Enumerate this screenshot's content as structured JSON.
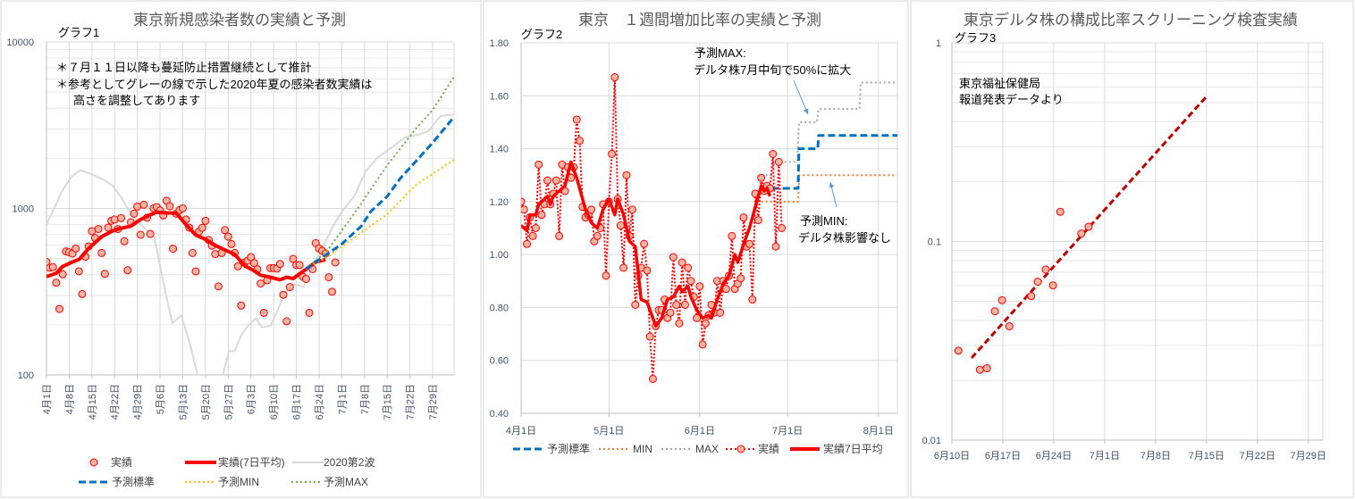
{
  "chart_data": [
    {
      "type": "line",
      "title": "東京新規感染者数の実績と予測",
      "label": "グラフ1",
      "notes": [
        "＊７月１１日以降も蔓延防止措置継続として推計",
        "＊参考としてグレーの線で示した2020年夏の感染者数実績は",
        "高さを調整してあります"
      ],
      "yscale": "log",
      "ylim": [
        100,
        10000
      ],
      "y_ticks": [
        "10000",
        "1000",
        "100"
      ],
      "xlim_days_from_apr1": [
        0,
        125.6
      ],
      "x_tick_days": [
        0,
        7,
        14,
        21,
        28,
        35,
        42,
        49,
        56,
        63,
        70,
        77,
        84,
        91,
        98,
        105,
        112,
        119
      ],
      "x_ticks": [
        "4月1日",
        "4月8日",
        "4月15日",
        "4月22日",
        "4月29日",
        "5月6日",
        "5月13日",
        "5月20日",
        "5月27日",
        "6月3日",
        "6月10日",
        "6月17日",
        "6月24日",
        "7月1日",
        "7月8日",
        "7月15日",
        "7月22日",
        "7月29日"
      ],
      "grid": true,
      "legend_placement": "bottom",
      "series": [
        {
          "name": "実績",
          "color": "#ff0000",
          "start_day": 0,
          "values": [
            477,
            440,
            444,
            358,
            249,
            402,
            552,
            545,
            536,
            575,
            419,
            306,
            513,
            592,
            730,
            664,
            752,
            540,
            405,
            767,
            843,
            858,
            752,
            875,
            635,
            425,
            826,
            930,
            1027,
            695,
            1052,
            879,
            703,
            1002,
            1018,
            973,
            907,
            1112,
            1031,
            573,
            930,
            977,
            1002,
            858,
            767,
            540,
            419,
            727,
            765,
            843,
            647,
            597,
            532,
            340,
            540,
            741,
            677,
            611,
            540,
            449,
            261,
            472,
            486,
            510,
            470,
            431,
            354,
            236,
            370,
            438,
            438,
            435,
            464,
            303,
            210,
            337,
            498,
            457,
            457,
            389,
            377,
            236,
            432,
            619,
            575,
            556,
            536,
            386,
            316,
            474
          ]
        },
        {
          "name": "実績(7日平均)",
          "color": "#ff0000",
          "points": [
            [
              0,
              390
            ],
            [
              3,
              408
            ],
            [
              5,
              449
            ],
            [
              8,
              477
            ],
            [
              10,
              493
            ],
            [
              13,
              575
            ],
            [
              17,
              677
            ],
            [
              20,
              727
            ],
            [
              22,
              752
            ],
            [
              26,
              783
            ],
            [
              29,
              858
            ],
            [
              32,
              916
            ],
            [
              34,
              949
            ],
            [
              37,
              940
            ],
            [
              40,
              937
            ],
            [
              43,
              800
            ],
            [
              46,
              692
            ],
            [
              49,
              653
            ],
            [
              52,
              600
            ],
            [
              55,
              563
            ],
            [
              58,
              530
            ],
            [
              61,
              453
            ],
            [
              64,
              422
            ],
            [
              66,
              397
            ],
            [
              69,
              386
            ],
            [
              72,
              373
            ],
            [
              74,
              386
            ],
            [
              76,
              379
            ],
            [
              78,
              405
            ],
            [
              80,
              431
            ],
            [
              83,
              477
            ],
            [
              86,
              493
            ]
          ]
        },
        {
          "name": "2020第2波",
          "color": "#d9d9d9",
          "points": [
            [
              0,
              800
            ],
            [
              2.6,
              1023
            ],
            [
              4.9,
              1282
            ],
            [
              7.6,
              1545
            ],
            [
              10.4,
              1698
            ],
            [
              14,
              1607
            ],
            [
              17.7,
              1482
            ],
            [
              20.5,
              1365
            ],
            [
              23.2,
              1156
            ],
            [
              26,
              923
            ],
            [
              29.6,
              783
            ],
            [
              33.3,
              664
            ],
            [
              35.1,
              440
            ],
            [
              37,
              292
            ],
            [
              38.8,
              205
            ],
            [
              41.6,
              228
            ],
            [
              44.3,
              151
            ],
            [
              46.6,
              100
            ],
            [
              48,
              80
            ],
            [
              53,
              80
            ],
            [
              54.4,
              100
            ],
            [
              56.2,
              139
            ],
            [
              58,
              139
            ],
            [
              59.9,
              171
            ],
            [
              61.7,
              193
            ],
            [
              64.5,
              219
            ],
            [
              66.4,
              193
            ],
            [
              69,
              197
            ],
            [
              70.9,
              237
            ],
            [
              73.7,
              316
            ],
            [
              76.4,
              351
            ],
            [
              79.2,
              337
            ],
            [
              81,
              405
            ],
            [
              84.7,
              563
            ],
            [
              88.3,
              783
            ],
            [
              91.1,
              962
            ],
            [
              94.8,
              1181
            ],
            [
              98.4,
              1675
            ],
            [
              102,
              2018
            ],
            [
              105.8,
              2280
            ],
            [
              110.4,
              2667
            ],
            [
              114,
              2749
            ],
            [
              117.7,
              2917
            ],
            [
              121.4,
              3589
            ],
            [
              125.6,
              3664
            ]
          ]
        },
        {
          "name": "予測標準",
          "color": "#0070c0",
          "points": [
            [
              80,
              431
            ],
            [
              83,
              477
            ],
            [
              87,
              541
            ],
            [
              91,
              611
            ],
            [
              97,
              783
            ],
            [
              100,
              962
            ],
            [
              105,
              1181
            ],
            [
              109,
              1512
            ],
            [
              114,
              1936
            ],
            [
              119,
              2478
            ],
            [
              125.6,
              3545
            ]
          ]
        },
        {
          "name": "予測MIN",
          "color": "#ffc000",
          "points": [
            [
              80,
              431
            ],
            [
              83,
              470
            ],
            [
              87,
              519
            ],
            [
              96,
              692
            ],
            [
              105,
              923
            ],
            [
              114,
              1393
            ],
            [
              125.6,
              1961
            ]
          ]
        },
        {
          "name": "予測MAX",
          "color": "#70ad47",
          "points": [
            [
              80,
              431
            ],
            [
              83,
              485
            ],
            [
              87,
              575
            ],
            [
              96,
              1002
            ],
            [
              105,
              1820
            ],
            [
              114,
              3040
            ],
            [
              119,
              3899
            ],
            [
              125.6,
              6180
            ]
          ]
        }
      ]
    },
    {
      "type": "line",
      "title": "東京　１週間増加比率の実績と予測",
      "label": "グラフ2",
      "yscale": "linear",
      "ylim": [
        0.4,
        1.8
      ],
      "y_ticks": [
        "1.80",
        "1.60",
        "1.40",
        "1.20",
        "1.00",
        "0.80",
        "0.60",
        "0.40"
      ],
      "xlim_days_from_apr1": [
        0,
        128.5
      ],
      "x_tick_days": [
        0,
        30,
        61,
        91,
        122
      ],
      "x_ticks": [
        "4月1日",
        "5月1日",
        "6月1日",
        "7月1日",
        "8月1日"
      ],
      "grid": true,
      "legend_placement": "bottom",
      "annotations": [
        {
          "lines": [
            "予測MAX:",
            "デルタ株7月中旬で50%に拡大"
          ]
        },
        {
          "lines": [
            "予測MIN:",
            "デルタ株影響なし"
          ]
        }
      ],
      "series": [
        {
          "name": "予測標準",
          "color": "#0070c0",
          "points": [
            [
              82,
              1.25
            ],
            [
              94.6,
              1.25
            ],
            [
              94.9,
              1.4
            ],
            [
              101.3,
              1.4
            ],
            [
              101.6,
              1.45
            ],
            [
              128.5,
              1.45
            ]
          ]
        },
        {
          "name": "MIN",
          "color": "#ed7d31",
          "points": [
            [
              82,
              1.2
            ],
            [
              94.6,
              1.2
            ],
            [
              95,
              1.3
            ],
            [
              128,
              1.3
            ]
          ]
        },
        {
          "name": "MAX",
          "color": "#a5a5a5",
          "points": [
            [
              82,
              1.3
            ],
            [
              86,
              1.3
            ],
            [
              86.3,
              1.35
            ],
            [
              94.3,
              1.35
            ],
            [
              94.9,
              1.5
            ],
            [
              101,
              1.5
            ],
            [
              101.6,
              1.55
            ],
            [
              115.6,
              1.55
            ],
            [
              116,
              1.65
            ],
            [
              128,
              1.65
            ]
          ]
        },
        {
          "name": "実績",
          "color": "#ff0000",
          "start_day": 0,
          "values": [
            1.2,
            1.17,
            1.04,
            1.14,
            1.07,
            1.1,
            1.34,
            1.15,
            1.19,
            1.28,
            1.19,
            1.23,
            1.28,
            1.07,
            1.34,
            1.24,
            1.33,
            1.29,
            1.33,
            1.51,
            1.43,
            1.18,
            1.14,
            1.15,
            1.17,
            1.05,
            1.07,
            1.1,
            1.19,
            0.92,
            1.2,
            1.38,
            1.67,
            1.21,
            1.11,
            0.95,
            1.3,
            1.07,
            1.17,
            0.81,
            0.92,
            0.95,
            1.04,
            0.94,
            0.69,
            0.53,
            0.73,
            0.79,
            0.79,
            0.83,
            0.76,
            0.78,
            0.99,
            0.81,
            0.74,
            0.97,
            0.81,
            0.95,
            0.9,
            0.84,
            0.76,
            0.88,
            0.66,
            0.74,
            0.77,
            0.81,
            0.78,
            0.9,
            0.78,
            0.9,
            0.87,
            0.92,
            1.07,
            0.87,
            0.89,
            0.91,
            1.14,
            1.03,
            1.04,
            0.83,
            1.23,
            1.13,
            1.29,
            1.24,
            1.26,
            1.25,
            1.38,
            1.03,
            1.35,
            1.1
          ]
        },
        {
          "name": "実績7日平均",
          "color": "#ff0000",
          "points": [
            [
              0,
              1.11
            ],
            [
              2,
              1.09
            ],
            [
              3,
              1.15
            ],
            [
              5,
              1.15
            ],
            [
              6,
              1.19
            ],
            [
              9,
              1.22
            ],
            [
              10,
              1.19
            ],
            [
              11,
              1.22
            ],
            [
              13,
              1.24
            ],
            [
              15,
              1.26
            ],
            [
              17,
              1.35
            ],
            [
              19,
              1.29
            ],
            [
              22,
              1.17
            ],
            [
              24,
              1.12
            ],
            [
              26,
              1.1
            ],
            [
              28,
              1.17
            ],
            [
              30,
              1.21
            ],
            [
              32,
              1.15
            ],
            [
              33,
              1.21
            ],
            [
              35,
              1.15
            ],
            [
              37,
              1.05
            ],
            [
              39,
              1.03
            ],
            [
              41,
              0.83
            ],
            [
              43,
              0.82
            ],
            [
              46,
              0.73
            ],
            [
              48,
              0.76
            ],
            [
              50,
              0.83
            ],
            [
              52,
              0.84
            ],
            [
              54,
              0.88
            ],
            [
              55,
              0.86
            ],
            [
              57,
              0.88
            ],
            [
              58,
              0.84
            ],
            [
              60,
              0.79
            ],
            [
              62,
              0.76
            ],
            [
              64,
              0.77
            ],
            [
              65,
              0.76
            ],
            [
              67,
              0.83
            ],
            [
              69,
              0.89
            ],
            [
              71,
              0.92
            ],
            [
              73,
              1.0
            ],
            [
              74,
              0.97
            ],
            [
              76,
              1.04
            ],
            [
              78,
              1.1
            ],
            [
              80,
              1.18
            ],
            [
              82,
              1.26
            ],
            [
              83,
              1.24
            ],
            [
              84,
              1.25
            ],
            [
              85,
              1.22
            ]
          ]
        }
      ]
    },
    {
      "type": "scatter",
      "title": "東京デルタ株の構成比率スクリーニング検査実績",
      "label": "グラフ3",
      "notes": [
        "東京福祉保健局",
        "報道発表データより"
      ],
      "yscale": "log",
      "ylim": [
        0.01,
        1
      ],
      "y_ticks": [
        "1",
        "0.1",
        "0.01"
      ],
      "xlim_days_from_jun10": [
        0,
        51
      ],
      "x_tick_days": [
        0,
        7,
        14,
        21,
        28,
        35,
        42,
        49
      ],
      "x_ticks": [
        "6月10日",
        "6月17日",
        "6月24日",
        "7月1日",
        "7月8日",
        "7月15日",
        "7月22日",
        "7月29日"
      ],
      "grid": true,
      "actual_points": {
        "color": "#ff0000",
        "points": [
          [
            0.9,
            0.0282
          ],
          [
            3.85,
            0.0226
          ],
          [
            4.8,
            0.023
          ],
          [
            5.9,
            0.0445
          ],
          [
            6.9,
            0.0506
          ],
          [
            7.9,
            0.0374
          ],
          [
            10.9,
            0.0531
          ],
          [
            11.8,
            0.0627
          ],
          [
            12.9,
            0.0722
          ],
          [
            13.9,
            0.0601
          ],
          [
            14.9,
            0.141
          ],
          [
            17.8,
            0.1096
          ],
          [
            18.8,
            0.1186
          ]
        ]
      },
      "trend_line": {
        "color": "#c00000",
        "points": [
          [
            2.7,
            0.0259
          ],
          [
            35,
            0.537
          ]
        ]
      }
    }
  ]
}
